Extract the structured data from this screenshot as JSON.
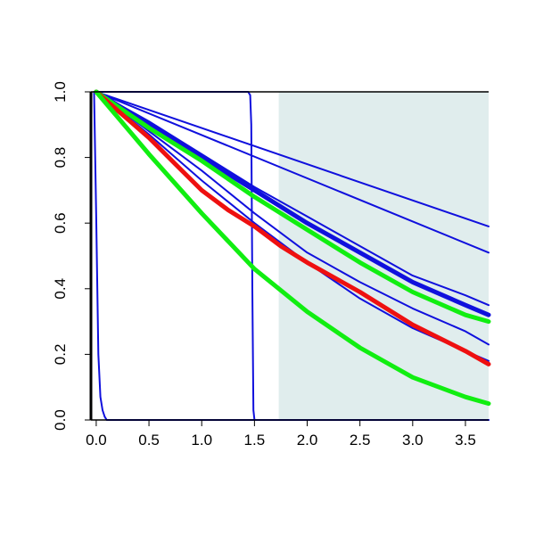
{
  "chart_data": {
    "type": "line",
    "title": "",
    "xlabel": "",
    "ylabel": "",
    "xlim": [
      -0.05,
      3.72
    ],
    "ylim": [
      0.0,
      1.0
    ],
    "grid": false,
    "legend": "none",
    "xticks": [
      0.0,
      0.5,
      1.0,
      1.5,
      2.0,
      2.5,
      3.0,
      3.5
    ],
    "xtick_labels": [
      "0.0",
      "0.5",
      "1.0",
      "1.5",
      "2.0",
      "2.5",
      "3.0",
      "3.5"
    ],
    "yticks": [
      0.0,
      0.2,
      0.4,
      0.6,
      0.8,
      1.0
    ],
    "ytick_labels": [
      "0.0",
      "0.2",
      "0.4",
      "0.6",
      "0.8",
      "1.0"
    ],
    "shaded_region": {
      "x": [
        1.73,
        3.72
      ],
      "color": "#e0eded"
    },
    "colors": {
      "blue": "#1010dd",
      "red": "#ee1010",
      "green": "#11ee11",
      "axis": "#000000"
    },
    "series": [
      {
        "color": "#1010dd",
        "width": "thin",
        "x": [
          -0.02,
          0.0,
          0.02,
          0.04,
          0.06,
          0.08,
          0.1,
          0.15,
          3.72
        ],
        "y": [
          1.0,
          0.62,
          0.2,
          0.07,
          0.03,
          0.01,
          0.0,
          0.0,
          0.0
        ]
      },
      {
        "color": "#1010dd",
        "width": "thin",
        "x": [
          0.0,
          1.44,
          1.46,
          1.47,
          1.48,
          1.49,
          1.5,
          1.52,
          3.72
        ],
        "y": [
          1.0,
          1.0,
          0.99,
          0.9,
          0.4,
          0.03,
          0.0,
          0.0,
          0.0
        ]
      },
      {
        "color": "#1010dd",
        "width": "thin",
        "x": [
          0.0,
          3.72
        ],
        "y": [
          1.0,
          0.59
        ]
      },
      {
        "color": "#1010dd",
        "width": "thin",
        "x": [
          0.0,
          3.72
        ],
        "y": [
          1.0,
          0.51
        ]
      },
      {
        "color": "#1010dd",
        "width": "thin",
        "x": [
          0.0,
          0.5,
          1.0,
          1.5,
          2.0,
          2.5,
          3.0,
          3.5,
          3.72
        ],
        "y": [
          1.0,
          0.91,
          0.81,
          0.71,
          0.62,
          0.53,
          0.44,
          0.38,
          0.35
        ]
      },
      {
        "color": "#1010dd",
        "width": "bold",
        "x": [
          0.0,
          0.5,
          1.0,
          1.5,
          2.0,
          2.5,
          3.0,
          3.5,
          3.72
        ],
        "y": [
          1.0,
          0.9,
          0.8,
          0.7,
          0.6,
          0.51,
          0.42,
          0.35,
          0.32
        ]
      },
      {
        "color": "#1010dd",
        "width": "thin",
        "x": [
          0.0,
          0.5,
          1.0,
          1.5,
          2.0,
          2.5,
          3.0,
          3.5,
          3.72
        ],
        "y": [
          1.0,
          0.88,
          0.76,
          0.63,
          0.51,
          0.42,
          0.34,
          0.27,
          0.23
        ]
      },
      {
        "color": "#1010dd",
        "width": "thin",
        "x": [
          0.0,
          0.5,
          1.0,
          1.5,
          2.0,
          2.5,
          3.0,
          3.5,
          3.72
        ],
        "y": [
          1.0,
          0.87,
          0.73,
          0.6,
          0.48,
          0.37,
          0.28,
          0.21,
          0.18
        ]
      },
      {
        "color": "#11ee11",
        "width": "bold",
        "x": [
          0.0,
          0.5,
          1.0,
          1.5,
          2.0,
          2.5,
          3.0,
          3.5,
          3.72
        ],
        "y": [
          1.0,
          0.89,
          0.79,
          0.68,
          0.58,
          0.48,
          0.39,
          0.32,
          0.3
        ]
      },
      {
        "color": "#ee1010",
        "width": "bold",
        "x": [
          0.0,
          0.25,
          0.5,
          0.75,
          1.0,
          1.25,
          1.5,
          1.75,
          2.0,
          2.5,
          3.0,
          3.5,
          3.72
        ],
        "y": [
          1.0,
          0.93,
          0.86,
          0.78,
          0.7,
          0.64,
          0.59,
          0.53,
          0.48,
          0.39,
          0.29,
          0.21,
          0.17
        ]
      },
      {
        "color": "#11ee11",
        "width": "bold",
        "x": [
          0.0,
          0.5,
          1.0,
          1.5,
          2.0,
          2.5,
          3.0,
          3.5,
          3.72
        ],
        "y": [
          1.0,
          0.81,
          0.63,
          0.46,
          0.33,
          0.22,
          0.13,
          0.07,
          0.05
        ]
      }
    ]
  }
}
